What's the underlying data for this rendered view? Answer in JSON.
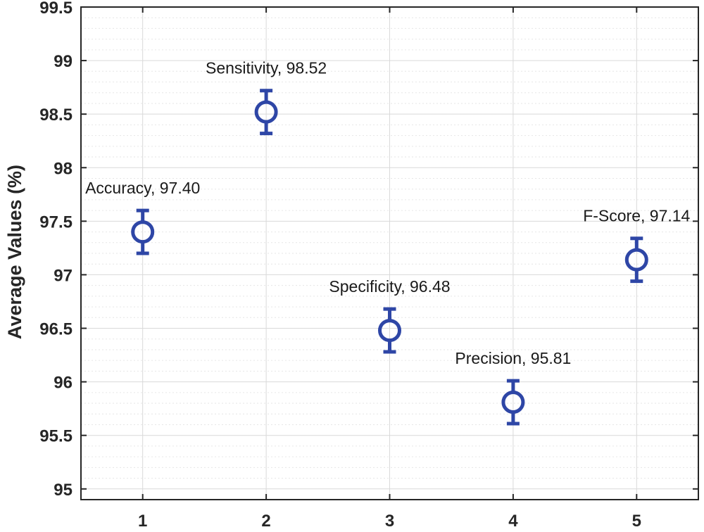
{
  "chart_data": {
    "type": "scatter",
    "title": "",
    "xlabel": "",
    "ylabel": "Average Values (%)",
    "xlim": [
      0.5,
      5.5
    ],
    "ylim": [
      94.9,
      99.5
    ],
    "xticks": [
      1,
      2,
      3,
      4,
      5
    ],
    "xtick_labels": [
      "1",
      "2",
      "3",
      "4",
      "5"
    ],
    "yticks": [
      95,
      95.5,
      96,
      96.5,
      97,
      97.5,
      98,
      98.5,
      99,
      99.5
    ],
    "ytick_labels": [
      "95",
      "95.5",
      "96",
      "96.5",
      "97",
      "97.5",
      "98",
      "98.5",
      "99",
      "99.5"
    ],
    "grid": true,
    "minor_grid": true,
    "marker": "circle",
    "error_bars": true,
    "points": [
      {
        "x": 1,
        "y": 97.4,
        "err": 0.2,
        "label": "Accuracy, 97.40"
      },
      {
        "x": 2,
        "y": 98.52,
        "err": 0.2,
        "label": "Sensitivity, 98.52"
      },
      {
        "x": 3,
        "y": 96.48,
        "err": 0.2,
        "label": "Specificity, 96.48"
      },
      {
        "x": 4,
        "y": 95.81,
        "err": 0.2,
        "label": "Precision, 95.81"
      },
      {
        "x": 5,
        "y": 97.14,
        "err": 0.2,
        "label": "F-Score, 97.14"
      }
    ],
    "colors": {
      "series": "#2e46a6",
      "axis": "#262626",
      "grid_major": "#d9d9d9",
      "grid_minor": "#e6e6e6"
    }
  }
}
